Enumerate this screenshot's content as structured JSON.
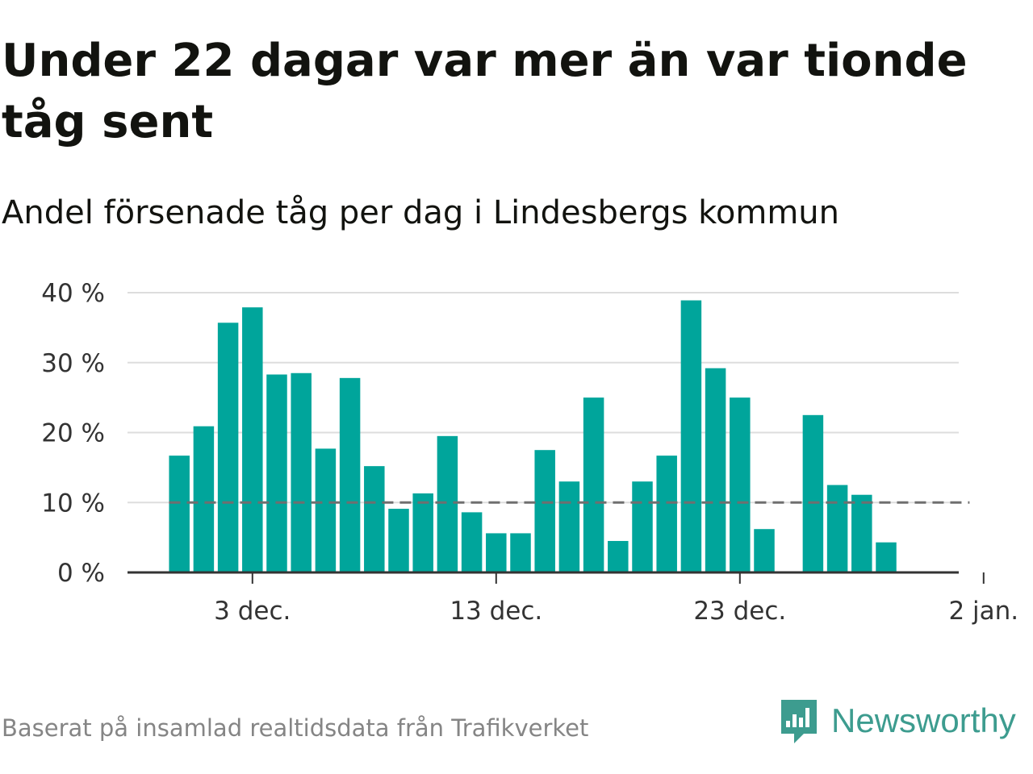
{
  "title": "Under 22 dagar var mer än var tionde tåg sent",
  "subtitle": "Andel försenade tåg per dag i Lindesbergs kommun",
  "footer": {
    "source": "Baserat på insamlad realtidsdata från Trafikverket",
    "brand_name": "Newsworthy",
    "brand_icon": "newsworthy-logo-icon",
    "brand_color": "#3d9c8f"
  },
  "chart_data": {
    "type": "bar",
    "x_start": "2023-11-29",
    "x_end": "2024-01-02",
    "x": [
      "2023-11-30",
      "2023-12-01",
      "2023-12-02",
      "2023-12-03",
      "2023-12-04",
      "2023-12-05",
      "2023-12-06",
      "2023-12-07",
      "2023-12-08",
      "2023-12-09",
      "2023-12-10",
      "2023-12-11",
      "2023-12-12",
      "2023-12-13",
      "2023-12-14",
      "2023-12-15",
      "2023-12-16",
      "2023-12-17",
      "2023-12-18",
      "2023-12-19",
      "2023-12-20",
      "2023-12-21",
      "2023-12-22",
      "2023-12-23",
      "2023-12-24",
      "2023-12-25",
      "2023-12-26",
      "2023-12-27",
      "2023-12-28",
      "2023-12-29",
      "2023-12-30",
      "2023-12-31",
      "2024-01-01"
    ],
    "values": [
      16.7,
      20.9,
      35.7,
      37.9,
      28.3,
      28.5,
      17.7,
      27.8,
      15.2,
      9.1,
      11.3,
      19.5,
      8.6,
      5.6,
      5.6,
      17.5,
      13.0,
      25.0,
      4.5,
      13.0,
      16.7,
      38.9,
      29.2,
      25.0,
      6.2,
      null,
      22.5,
      12.5,
      11.1,
      4.3,
      null,
      null,
      null
    ],
    "reference_line": 10,
    "x_ticks": [
      {
        "date": "2023-12-03",
        "label": "3 dec."
      },
      {
        "date": "2023-12-13",
        "label": "13 dec."
      },
      {
        "date": "2023-12-23",
        "label": "23 dec."
      },
      {
        "date": "2024-01-02",
        "label": "2 jan."
      }
    ],
    "y_ticks": [
      {
        "value": 0,
        "label": "0 %"
      },
      {
        "value": 10,
        "label": "10 %"
      },
      {
        "value": 20,
        "label": "20 %"
      },
      {
        "value": 30,
        "label": "30 %"
      },
      {
        "value": 40,
        "label": "40 %"
      }
    ],
    "ylim": [
      0,
      40
    ],
    "grid": true,
    "bar_color": "#00a59b",
    "reference_color": "#6f6f6f",
    "grid_color": "#dddddd",
    "axis_color": "#333333"
  }
}
